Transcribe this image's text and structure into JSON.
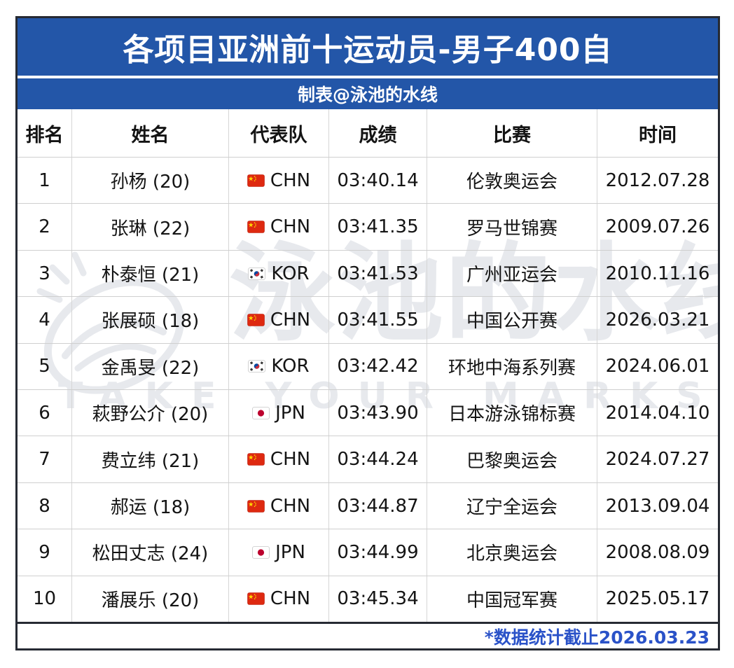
{
  "title": "各项目亚洲前十运动员-男子400自",
  "subtitle": "制表@泳池的水线",
  "footer": {
    "note": "*数据统计截止2026.03.23"
  },
  "colors": {
    "banner_blue": "#2356A8",
    "footer_note_blue": "#2A52C8"
  },
  "watermark": {
    "brand_cn": "泳池的水线",
    "brand_en": "TAKE YOUR MARKS",
    "logo": "swim-ellipse-logo"
  },
  "table": {
    "columns": [
      "排名",
      "姓名",
      "代表队",
      "成绩",
      "比赛",
      "时间"
    ],
    "rows": [
      {
        "rank": "1",
        "name": "孙杨 (20)",
        "team": "CHN",
        "flag": "cn",
        "result": "03:40.14",
        "meet": "伦敦奥运会",
        "date": "2012.07.28"
      },
      {
        "rank": "2",
        "name": "张琳 (22)",
        "team": "CHN",
        "flag": "cn",
        "result": "03:41.35",
        "meet": "罗马世锦赛",
        "date": "2009.07.26"
      },
      {
        "rank": "3",
        "name": "朴泰恒 (21)",
        "team": "KOR",
        "flag": "kr",
        "result": "03:41.53",
        "meet": "广州亚运会",
        "date": "2010.11.16"
      },
      {
        "rank": "4",
        "name": "张展硕 (18)",
        "team": "CHN",
        "flag": "cn",
        "result": "03:41.55",
        "meet": "中国公开赛",
        "date": "2026.03.21"
      },
      {
        "rank": "5",
        "name": "金禹旻 (22)",
        "team": "KOR",
        "flag": "kr",
        "result": "03:42.42",
        "meet": "环地中海系列赛",
        "date": "2024.06.01"
      },
      {
        "rank": "6",
        "name": "萩野公介 (20)",
        "team": "JPN",
        "flag": "jp",
        "result": "03:43.90",
        "meet": "日本游泳锦标赛",
        "date": "2014.04.10"
      },
      {
        "rank": "7",
        "name": "费立纬 (21)",
        "team": "CHN",
        "flag": "cn",
        "result": "03:44.24",
        "meet": "巴黎奥运会",
        "date": "2024.07.27"
      },
      {
        "rank": "8",
        "name": "郝运 (18)",
        "team": "CHN",
        "flag": "cn",
        "result": "03:44.87",
        "meet": "辽宁全运会",
        "date": "2013.09.04"
      },
      {
        "rank": "9",
        "name": "松田丈志 (24)",
        "team": "JPN",
        "flag": "jp",
        "result": "03:44.99",
        "meet": "北京奥运会",
        "date": "2008.08.09"
      },
      {
        "rank": "10",
        "name": "潘展乐 (20)",
        "team": "CHN",
        "flag": "cn",
        "result": "03:45.34",
        "meet": "中国冠军赛",
        "date": "2025.05.17"
      }
    ]
  },
  "chart_data": {
    "type": "table",
    "title": "各项目亚洲前十运动员-男子400自",
    "subtitle": "制表@泳池的水线",
    "columns": [
      "排名",
      "姓名",
      "代表队",
      "成绩",
      "比赛",
      "时间"
    ],
    "rows": [
      [
        "1",
        "孙杨 (20)",
        "CHN",
        "03:40.14",
        "伦敦奥运会",
        "2012.07.28"
      ],
      [
        "2",
        "张琳 (22)",
        "CHN",
        "03:41.35",
        "罗马世锦赛",
        "2009.07.26"
      ],
      [
        "3",
        "朴泰恒 (21)",
        "KOR",
        "03:41.53",
        "广州亚运会",
        "2010.11.16"
      ],
      [
        "4",
        "张展硕 (18)",
        "CHN",
        "03:41.55",
        "中国公开赛",
        "2026.03.21"
      ],
      [
        "5",
        "金禹旻 (22)",
        "KOR",
        "03:42.42",
        "环地中海系列赛",
        "2024.06.01"
      ],
      [
        "6",
        "萩野公介 (20)",
        "JPN",
        "03:43.90",
        "日本游泳锦标赛",
        "2014.04.10"
      ],
      [
        "7",
        "费立纬 (21)",
        "CHN",
        "03:44.24",
        "巴黎奥运会",
        "2024.07.27"
      ],
      [
        "8",
        "郝运 (18)",
        "CHN",
        "03:44.87",
        "辽宁全运会",
        "2013.09.04"
      ],
      [
        "9",
        "松田丈志 (24)",
        "JPN",
        "03:44.99",
        "北京奥运会",
        "2008.08.09"
      ],
      [
        "10",
        "潘展乐 (20)",
        "CHN",
        "03:45.34",
        "中国冠军赛",
        "2025.05.17"
      ]
    ],
    "footnote": "*数据统计截止2026.03.23"
  }
}
